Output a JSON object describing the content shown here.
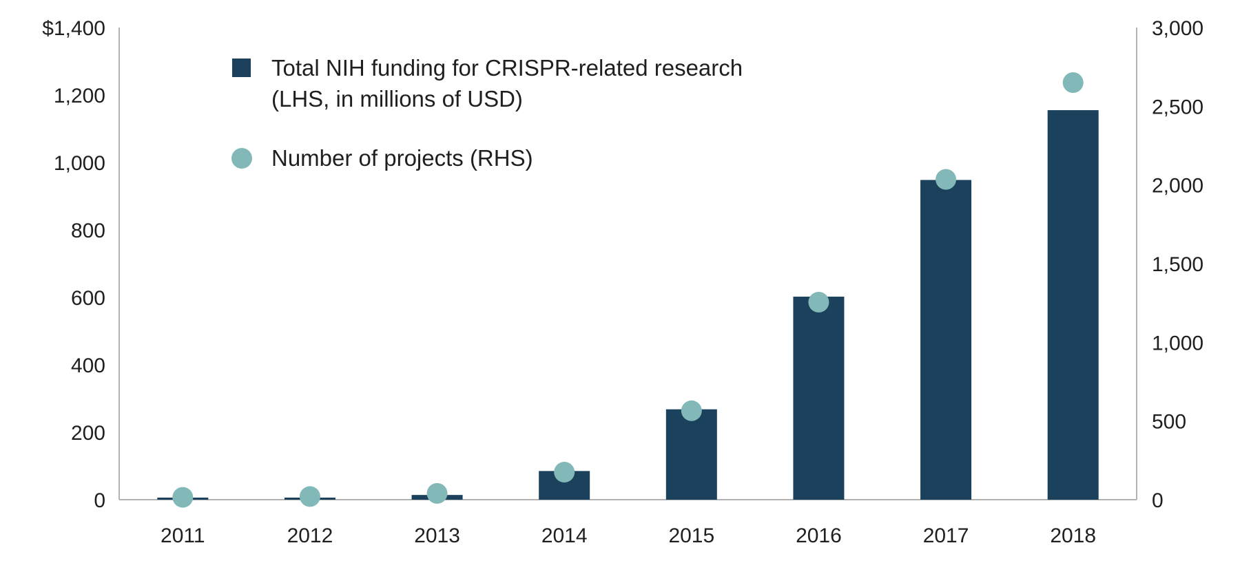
{
  "chart_data": {
    "type": "bar",
    "categories": [
      "2011",
      "2012",
      "2013",
      "2014",
      "2015",
      "2016",
      "2017",
      "2018"
    ],
    "series": [
      {
        "name": "Total NIH funding for CRISPR-related research (LHS, in millions of USD)",
        "legend_lines": [
          "Total NIH funding for CRISPR-related research",
          "(LHS, in millions of USD)"
        ],
        "kind": "bar",
        "axis": "left",
        "color": "#1c415c",
        "values": [
          3,
          6,
          14,
          85,
          268,
          602,
          948,
          1155
        ]
      },
      {
        "name": "Number of projects (RHS)",
        "legend_lines": [
          "Number of projects (RHS)"
        ],
        "kind": "scatter",
        "axis": "right",
        "color": "#82b9b8",
        "values": [
          15,
          20,
          40,
          175,
          565,
          1255,
          2035,
          2650
        ]
      }
    ],
    "left_axis": {
      "ylim": [
        0,
        1400
      ],
      "ticks": [
        0,
        200,
        400,
        600,
        800,
        1000,
        1200,
        1400
      ],
      "tick_labels": [
        "0",
        "200",
        "400",
        "600",
        "800",
        "1,000",
        "1,200",
        "$1,400"
      ]
    },
    "right_axis": {
      "ylim": [
        0,
        3000
      ],
      "ticks": [
        0,
        500,
        1000,
        1500,
        2000,
        2500,
        3000
      ],
      "tick_labels": [
        "0",
        "500",
        "1,000",
        "1,500",
        "2,000",
        "2,500",
        "3,000"
      ]
    },
    "title": "",
    "xlabel": "",
    "ylabel": "",
    "grid": false,
    "legend_position": "top-left",
    "axis_color": "#b3b3b3"
  }
}
